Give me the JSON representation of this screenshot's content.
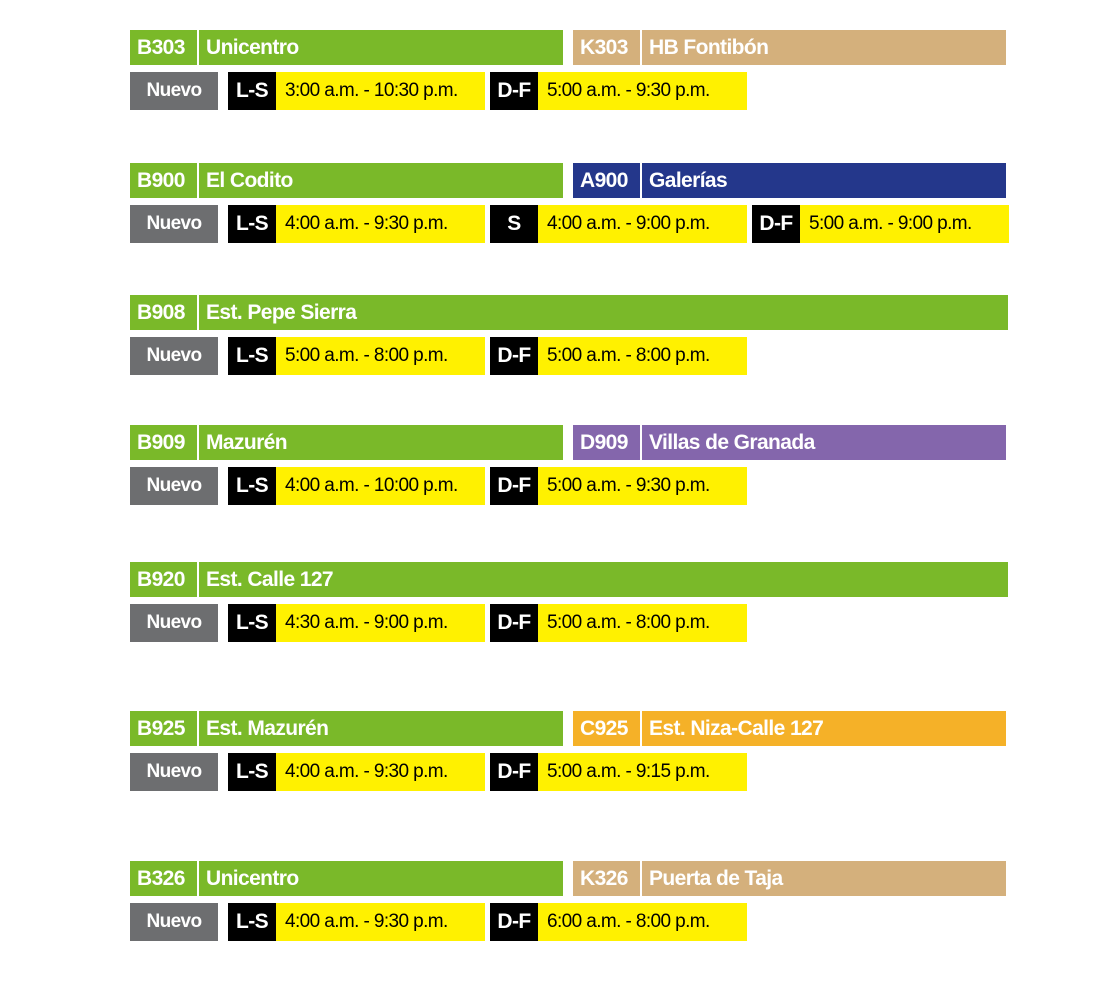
{
  "routes": [
    {
      "lines": [
        {
          "code": "B303",
          "name": "Unicentro",
          "color": "#7ab929"
        },
        {
          "code": "K303",
          "name": "HB Fontibón",
          "color": "#d4b07c"
        }
      ],
      "status": "Nuevo",
      "schedules": [
        {
          "days": "L-S",
          "hours": "3:00 a.m. - 10:30 p.m."
        },
        {
          "days": "D-F",
          "hours": "5:00 a.m. - 9:30 p.m."
        }
      ]
    },
    {
      "lines": [
        {
          "code": "B900",
          "name": "El Codito",
          "color": "#7ab929"
        },
        {
          "code": "A900",
          "name": "Galerías",
          "color": "#24378b"
        }
      ],
      "status": "Nuevo",
      "schedules": [
        {
          "days": "L-S",
          "hours": "4:00 a.m. - 9:30 p.m."
        },
        {
          "days": "S",
          "hours": "4:00 a.m. - 9:00 p.m."
        },
        {
          "days": "D-F",
          "hours": "5:00 a.m. - 9:00 p.m."
        }
      ]
    },
    {
      "lines": [
        {
          "code": "B908",
          "name": "Est. Pepe Sierra",
          "color": "#7ab929"
        }
      ],
      "status": "Nuevo",
      "schedules": [
        {
          "days": "L-S",
          "hours": "5:00 a.m. - 8:00 p.m."
        },
        {
          "days": "D-F",
          "hours": "5:00 a.m. - 8:00 p.m."
        }
      ]
    },
    {
      "lines": [
        {
          "code": "B909",
          "name": "Mazurén",
          "color": "#7ab929"
        },
        {
          "code": "D909",
          "name": "Villas de Granada",
          "color": "#8466ac"
        }
      ],
      "status": "Nuevo",
      "schedules": [
        {
          "days": "L-S",
          "hours": "4:00 a.m. - 10:00 p.m."
        },
        {
          "days": "D-F",
          "hours": "5:00 a.m. - 9:30 p.m."
        }
      ]
    },
    {
      "lines": [
        {
          "code": "B920",
          "name": "Est. Calle 127",
          "color": "#7ab929"
        }
      ],
      "status": "Nuevo",
      "schedules": [
        {
          "days": "L-S",
          "hours": "4:30 a.m. - 9:00 p.m."
        },
        {
          "days": "D-F",
          "hours": "5:00 a.m. - 8:00 p.m."
        }
      ]
    },
    {
      "lines": [
        {
          "code": "B925",
          "name": "Est. Mazurén",
          "color": "#7ab929"
        },
        {
          "code": "C925",
          "name": "Est. Niza-Calle 127",
          "color": "#f5b128"
        }
      ],
      "status": "Nuevo",
      "schedules": [
        {
          "days": "L-S",
          "hours": "4:00 a.m. - 9:30 p.m."
        },
        {
          "days": "D-F",
          "hours": "5:00 a.m. - 9:15 p.m."
        }
      ]
    },
    {
      "lines": [
        {
          "code": "B326",
          "name": "Unicentro",
          "color": "#7ab929"
        },
        {
          "code": "K326",
          "name": "Puerta de Taja",
          "color": "#d4b07c"
        }
      ],
      "status": "Nuevo",
      "schedules": [
        {
          "days": "L-S",
          "hours": "4:00 a.m. - 9:30 p.m."
        },
        {
          "days": "D-F",
          "hours": "6:00 a.m. - 8:00 p.m."
        }
      ]
    }
  ]
}
